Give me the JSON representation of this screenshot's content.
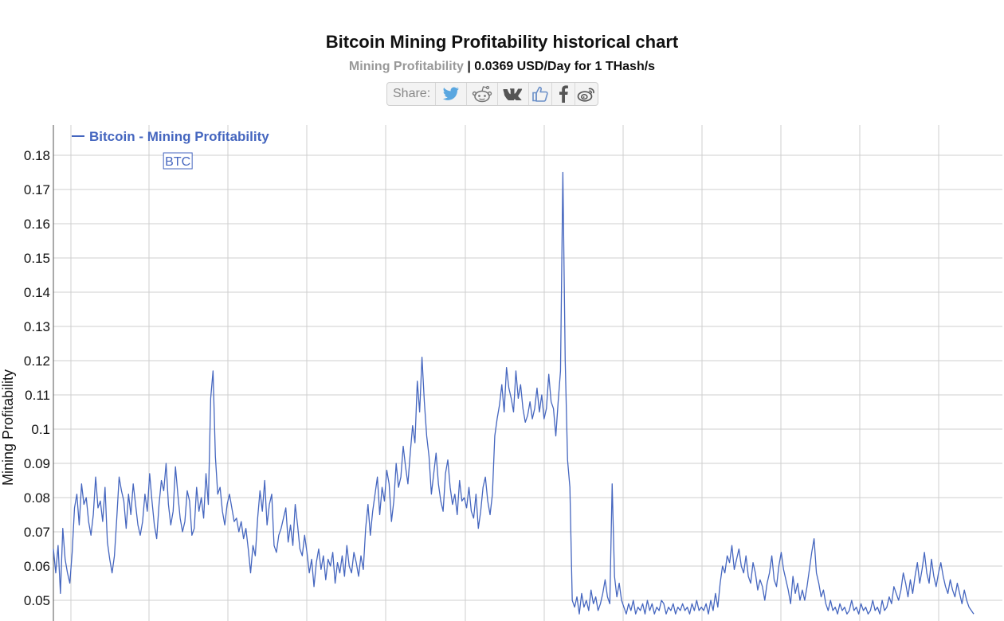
{
  "header": {
    "title": "Bitcoin Mining Profitability historical chart",
    "subtitle_label": "Mining Profitability",
    "subtitle_value": "| 0.0369 USD/Day for 1 THash/s"
  },
  "share": {
    "label": "Share:",
    "buttons": [
      {
        "name": "twitter-icon",
        "color": "#5aa7e0"
      },
      {
        "name": "reddit-icon",
        "color": "#777777"
      },
      {
        "name": "vk-icon",
        "color": "#555555"
      },
      {
        "name": "like-icon",
        "color": "#6a8fc8"
      },
      {
        "name": "facebook-icon",
        "color": "#555555"
      },
      {
        "name": "weibo-icon",
        "color": "#555555"
      }
    ]
  },
  "chart_data": {
    "type": "line",
    "ylabel": "Mining Profitability",
    "xlabel": "",
    "ylim": [
      0.0455,
      0.1895
    ],
    "y_ticks": [
      0.05,
      0.06,
      0.07,
      0.08,
      0.09,
      0.1,
      0.11,
      0.12,
      0.13,
      0.14,
      0.15,
      0.16,
      0.17,
      0.18
    ],
    "y_tick_labels": [
      "0.05",
      "0.06",
      "0.07",
      "0.08",
      "0.09",
      "0.1",
      "0.11",
      "0.12",
      "0.13",
      "0.14",
      "0.15",
      "0.16",
      "0.17",
      "0.18"
    ],
    "grid": true,
    "legend": {
      "position": "top-left",
      "entries": [
        "Bitcoin - Mining Profitability"
      ]
    },
    "annotation": {
      "text": "BTC",
      "index": 53
    },
    "series": [
      {
        "name": "Bitcoin - Mining Profitability",
        "color": "#4566bf",
        "values": [
          0.065,
          0.058,
          0.066,
          0.052,
          0.071,
          0.062,
          0.058,
          0.055,
          0.064,
          0.077,
          0.081,
          0.072,
          0.084,
          0.078,
          0.08,
          0.073,
          0.069,
          0.075,
          0.086,
          0.077,
          0.079,
          0.073,
          0.083,
          0.067,
          0.062,
          0.058,
          0.063,
          0.074,
          0.086,
          0.082,
          0.079,
          0.071,
          0.081,
          0.075,
          0.084,
          0.078,
          0.072,
          0.069,
          0.073,
          0.081,
          0.076,
          0.087,
          0.079,
          0.072,
          0.068,
          0.078,
          0.085,
          0.082,
          0.09,
          0.078,
          0.072,
          0.076,
          0.089,
          0.081,
          0.074,
          0.07,
          0.073,
          0.082,
          0.079,
          0.069,
          0.071,
          0.083,
          0.076,
          0.08,
          0.074,
          0.087,
          0.078,
          0.109,
          0.117,
          0.092,
          0.081,
          0.083,
          0.076,
          0.072,
          0.078,
          0.081,
          0.077,
          0.073,
          0.074,
          0.07,
          0.073,
          0.068,
          0.071,
          0.065,
          0.058,
          0.066,
          0.063,
          0.074,
          0.082,
          0.076,
          0.085,
          0.072,
          0.078,
          0.081,
          0.066,
          0.064,
          0.069,
          0.071,
          0.074,
          0.077,
          0.067,
          0.072,
          0.066,
          0.078,
          0.072,
          0.065,
          0.063,
          0.069,
          0.064,
          0.058,
          0.062,
          0.054,
          0.061,
          0.065,
          0.059,
          0.063,
          0.056,
          0.062,
          0.06,
          0.064,
          0.055,
          0.061,
          0.058,
          0.063,
          0.057,
          0.066,
          0.06,
          0.058,
          0.064,
          0.061,
          0.057,
          0.063,
          0.059,
          0.071,
          0.078,
          0.069,
          0.076,
          0.081,
          0.086,
          0.075,
          0.083,
          0.079,
          0.088,
          0.084,
          0.073,
          0.079,
          0.09,
          0.083,
          0.086,
          0.095,
          0.089,
          0.084,
          0.093,
          0.101,
          0.096,
          0.114,
          0.105,
          0.121,
          0.108,
          0.098,
          0.092,
          0.081,
          0.087,
          0.093,
          0.084,
          0.079,
          0.076,
          0.087,
          0.091,
          0.083,
          0.078,
          0.081,
          0.075,
          0.085,
          0.079,
          0.08,
          0.077,
          0.083,
          0.076,
          0.074,
          0.081,
          0.071,
          0.076,
          0.083,
          0.086,
          0.079,
          0.075,
          0.081,
          0.098,
          0.103,
          0.107,
          0.113,
          0.105,
          0.118,
          0.112,
          0.109,
          0.105,
          0.117,
          0.109,
          0.113,
          0.106,
          0.102,
          0.104,
          0.108,
          0.103,
          0.106,
          0.112,
          0.105,
          0.11,
          0.103,
          0.106,
          0.116,
          0.108,
          0.106,
          0.098,
          0.108,
          0.117,
          0.175,
          0.12,
          0.091,
          0.083,
          0.05,
          0.048,
          0.051,
          0.046,
          0.052,
          0.048,
          0.05,
          0.047,
          0.053,
          0.049,
          0.051,
          0.047,
          0.049,
          0.052,
          0.056,
          0.051,
          0.049,
          0.084,
          0.057,
          0.051,
          0.055,
          0.05,
          0.048,
          0.046,
          0.049,
          0.047,
          0.05,
          0.046,
          0.048,
          0.047,
          0.049,
          0.046,
          0.05,
          0.047,
          0.049,
          0.046,
          0.048,
          0.047,
          0.05,
          0.049,
          0.046,
          0.048,
          0.047,
          0.049,
          0.046,
          0.048,
          0.047,
          0.049,
          0.047,
          0.048,
          0.046,
          0.049,
          0.047,
          0.05,
          0.047,
          0.048,
          0.047,
          0.049,
          0.046,
          0.05,
          0.047,
          0.052,
          0.048,
          0.055,
          0.06,
          0.058,
          0.063,
          0.061,
          0.066,
          0.059,
          0.062,
          0.065,
          0.06,
          0.058,
          0.063,
          0.057,
          0.055,
          0.061,
          0.058,
          0.053,
          0.056,
          0.054,
          0.05,
          0.055,
          0.058,
          0.063,
          0.056,
          0.054,
          0.06,
          0.064,
          0.059,
          0.056,
          0.053,
          0.049,
          0.057,
          0.052,
          0.055,
          0.05,
          0.053,
          0.05,
          0.054,
          0.059,
          0.064,
          0.068,
          0.058,
          0.055,
          0.051,
          0.053,
          0.049,
          0.047,
          0.05,
          0.047,
          0.048,
          0.046,
          0.049,
          0.047,
          0.048,
          0.046,
          0.047,
          0.05,
          0.047,
          0.048,
          0.046,
          0.049,
          0.047,
          0.048,
          0.046,
          0.047,
          0.05,
          0.047,
          0.048,
          0.046,
          0.05,
          0.047,
          0.048,
          0.051,
          0.049,
          0.054,
          0.052,
          0.05,
          0.053,
          0.058,
          0.055,
          0.051,
          0.056,
          0.052,
          0.057,
          0.061,
          0.055,
          0.059,
          0.064,
          0.058,
          0.055,
          0.062,
          0.057,
          0.054,
          0.058,
          0.061,
          0.057,
          0.054,
          0.052,
          0.056,
          0.053,
          0.051,
          0.055,
          0.052,
          0.049,
          0.053,
          0.05,
          0.048,
          0.047,
          0.046
        ]
      }
    ]
  }
}
